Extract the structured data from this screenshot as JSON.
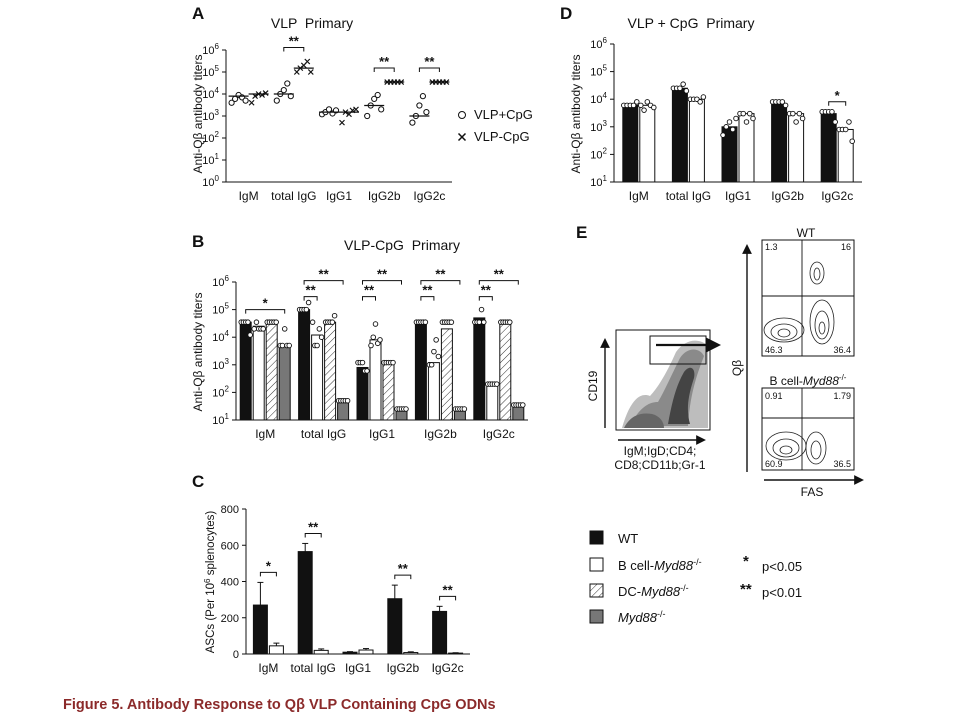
{
  "caption": "Figure 5. Antibody Response to Qβ VLP Containing CpG ODNs",
  "colors": {
    "wt": "#111111",
    "bko": "#ffffff",
    "myd88": "#777777",
    "ink": "#111111",
    "caption": "#8b2a2a"
  },
  "legend": {
    "items": [
      {
        "label": "WT",
        "style": "wt"
      },
      {
        "label": "B cell-Myd88-/-",
        "base": "B cell-",
        "gene": "Myd88",
        "sup": "-/-",
        "style": "bko"
      },
      {
        "label": "DC-Myd88-/-",
        "base": "DC-",
        "gene": "Myd88",
        "sup": "-/-",
        "style": "dcko"
      },
      {
        "label": "Myd88-/-",
        "base": "",
        "gene": "Myd88",
        "sup": "-/-",
        "style": "myd88"
      }
    ],
    "significance": [
      {
        "symbol": "*",
        "text": "p<0.05"
      },
      {
        "symbol": "**",
        "text": "p<0.01"
      }
    ]
  },
  "panels": [
    {
      "letter": "A",
      "title": "VLP  Primary",
      "type": "scatter",
      "ylabel": "Anti-Qβ antibody titers",
      "yscale": "log",
      "ylim": [
        1,
        1000000
      ],
      "categories": [
        "IgM",
        "total IgG",
        "IgG1",
        "IgG2b",
        "IgG2c"
      ],
      "series": [
        {
          "name": "VLP+CpG",
          "marker": "circle",
          "values": [
            [
              4000,
              6000,
              9000,
              7000,
              5000
            ],
            [
              5000,
              10000,
              15000,
              30000,
              8000
            ],
            [
              1200,
              1500,
              2000,
              1300,
              1800
            ],
            [
              1000,
              3000,
              6000,
              9000,
              2000
            ],
            [
              500,
              1000,
              3000,
              8000,
              1500
            ]
          ],
          "medians": [
            8000,
            10000,
            1500,
            3000,
            1000
          ]
        },
        {
          "name": "VLP-CpG",
          "marker": "cross",
          "values": [
            [
              4000,
              8000,
              10000,
              9000,
              11000
            ],
            [
              100000,
              150000,
              200000,
              300000,
              100000
            ],
            [
              500,
              1500,
              1200,
              1800,
              2000
            ],
            [
              35000,
              35000,
              35000,
              35000,
              35000
            ],
            [
              35000,
              35000,
              35000,
              35000,
              35000
            ]
          ],
          "medians": [
            10000,
            150000,
            1500,
            35000,
            35000
          ]
        }
      ],
      "significance": [
        "",
        "**",
        "",
        "**",
        "**"
      ]
    },
    {
      "letter": "B",
      "title": "VLP-CpG  Primary",
      "type": "bar",
      "ylabel": "Anti-Qβ antibody titers",
      "yscale": "log",
      "ylim": [
        10,
        1000000
      ],
      "categories": [
        "IgM",
        "total IgG",
        "IgG1",
        "IgG2b",
        "IgG2c"
      ],
      "series": [
        {
          "name": "WT",
          "style": "wt",
          "values": [
            35000,
            100000,
            800,
            35000,
            50000
          ],
          "points": [
            [
              35000,
              35000,
              35000,
              35000,
              12000
            ],
            [
              100000,
              100000,
              100000,
              100000,
              180000
            ],
            [
              1200,
              1200,
              1200,
              600,
              600
            ],
            [
              35000,
              35000,
              35000,
              35000,
              35000
            ],
            [
              35000,
              35000,
              35000,
              100000,
              35000
            ]
          ]
        },
        {
          "name": "B cell-Myd88-/-",
          "style": "bko",
          "values": [
            25000,
            12000,
            8000,
            1200,
            200
          ],
          "points": [
            [
              20000,
              35000,
              20000,
              20000,
              20000
            ],
            [
              35000,
              5000,
              5000,
              20000,
              10000
            ],
            [
              5000,
              10000,
              30000,
              6000,
              8000
            ],
            [
              1000,
              1000,
              3000,
              8000,
              2000
            ],
            [
              200,
              200,
              200,
              200,
              200
            ]
          ]
        },
        {
          "name": "DC-Myd88-/-",
          "style": "dcko",
          "values": [
            30000,
            35000,
            1200,
            20000,
            35000
          ],
          "points": [
            [
              35000,
              35000,
              35000,
              35000,
              35000
            ],
            [
              35000,
              35000,
              35000,
              35000,
              60000
            ],
            [
              1200,
              1200,
              1200,
              1200,
              1200
            ],
            [
              35000,
              35000,
              35000,
              35000,
              35000
            ],
            [
              35000,
              35000,
              35000,
              35000,
              35000
            ]
          ]
        },
        {
          "name": "Myd88-/-",
          "style": "myd88",
          "values": [
            5000,
            50,
            25,
            25,
            35
          ],
          "points": [
            [
              5000,
              5000,
              20000,
              5000,
              5000
            ],
            [
              50,
              50,
              50,
              50,
              50
            ],
            [
              25,
              25,
              25,
              25,
              25
            ],
            [
              25,
              25,
              25,
              25,
              25
            ],
            [
              35,
              35,
              35,
              35,
              35
            ]
          ]
        }
      ],
      "brackets": [
        {
          "group": 0,
          "from": 0,
          "to": 3,
          "label": "*",
          "level": 1
        },
        {
          "group": 1,
          "from": 0,
          "to": 1,
          "label": "**",
          "level": 0
        },
        {
          "group": 1,
          "from": 0,
          "to": 3,
          "label": "**",
          "level": 1
        },
        {
          "group": 2,
          "from": 0,
          "to": 1,
          "label": "**",
          "level": 0
        },
        {
          "group": 2,
          "from": 0,
          "to": 3,
          "label": "**",
          "level": 1
        },
        {
          "group": 3,
          "from": 0,
          "to": 1,
          "label": "**",
          "level": 0
        },
        {
          "group": 3,
          "from": 0,
          "to": 3,
          "label": "**",
          "level": 1
        },
        {
          "group": 4,
          "from": 0,
          "to": 1,
          "label": "**",
          "level": 0
        },
        {
          "group": 4,
          "from": 0,
          "to": 3,
          "label": "**",
          "level": 1
        }
      ]
    },
    {
      "letter": "C",
      "title": "",
      "type": "bar",
      "ylabel": "ASCs (Per 10^6 splenocytes)",
      "ylabel_parts": [
        "ASCs (Per 10",
        "6",
        " splenocytes)"
      ],
      "yscale": "linear",
      "ylim": [
        0,
        800
      ],
      "yticks": [
        0,
        200,
        400,
        600,
        800
      ],
      "categories": [
        "IgM",
        "total IgG",
        "IgG1",
        "IgG2b",
        "IgG2c"
      ],
      "series": [
        {
          "name": "WT",
          "style": "wt",
          "values": [
            270,
            565,
            10,
            305,
            235
          ],
          "errors": [
            125,
            45,
            3,
            75,
            28
          ]
        },
        {
          "name": "B cell-Myd88-/-",
          "style": "bko",
          "values": [
            45,
            20,
            22,
            8,
            5
          ],
          "errors": [
            15,
            8,
            8,
            4,
            2
          ]
        }
      ],
      "significance": [
        "*",
        "**",
        "",
        "**",
        "**"
      ]
    },
    {
      "letter": "D",
      "title": "VLP + CpG  Primary",
      "type": "bar",
      "ylabel": "Anti-Qβ antibody titers",
      "yscale": "log",
      "ylim": [
        10,
        1000000
      ],
      "categories": [
        "IgM",
        "total IgG",
        "IgG1",
        "IgG2b",
        "IgG2c"
      ],
      "series": [
        {
          "name": "WT",
          "style": "wt",
          "values": [
            6000,
            25000,
            1000,
            7000,
            3000
          ],
          "points": [
            [
              6000,
              6000,
              6000,
              6000,
              8000
            ],
            [
              25000,
              25000,
              25000,
              35000,
              20000
            ],
            [
              500,
              1000,
              1500,
              800,
              2000
            ],
            [
              8000,
              8000,
              8000,
              8000,
              6000
            ],
            [
              3500,
              3500,
              3500,
              3500,
              1500
            ]
          ]
        },
        {
          "name": "B cell-Myd88-/-",
          "style": "bko",
          "values": [
            6000,
            10000,
            3000,
            3000,
            800
          ],
          "points": [
            [
              6000,
              4000,
              8000,
              6000,
              5000
            ],
            [
              10000,
              10000,
              10000,
              8000,
              12000
            ],
            [
              3000,
              3000,
              1500,
              3000,
              2000
            ],
            [
              3000,
              3000,
              1500,
              3000,
              2000
            ],
            [
              800,
              800,
              800,
              1500,
              300
            ]
          ]
        }
      ],
      "significance": [
        "",
        "",
        "",
        "",
        "*"
      ]
    }
  ],
  "flow": {
    "letter": "E",
    "dotplot": {
      "ylabel": "CD19",
      "xlabel_lines": [
        "IgM;IgD;CD4;",
        "CD8;CD11b;Gr-1"
      ]
    },
    "contours": [
      {
        "title": "WT",
        "title_gene": "",
        "title_sup": "",
        "quadrants": {
          "ul": "1.3",
          "ur": "16",
          "ll": "46.3",
          "lr": "36.4"
        }
      },
      {
        "title": "B cell-",
        "title_gene": "Myd88",
        "title_sup": "-/-",
        "quadrants": {
          "ul": "0.91",
          "ur": "1.79",
          "ll": "60.9",
          "lr": "36.5"
        }
      }
    ],
    "ylabel": "Qβ",
    "xlabel": "FAS"
  }
}
